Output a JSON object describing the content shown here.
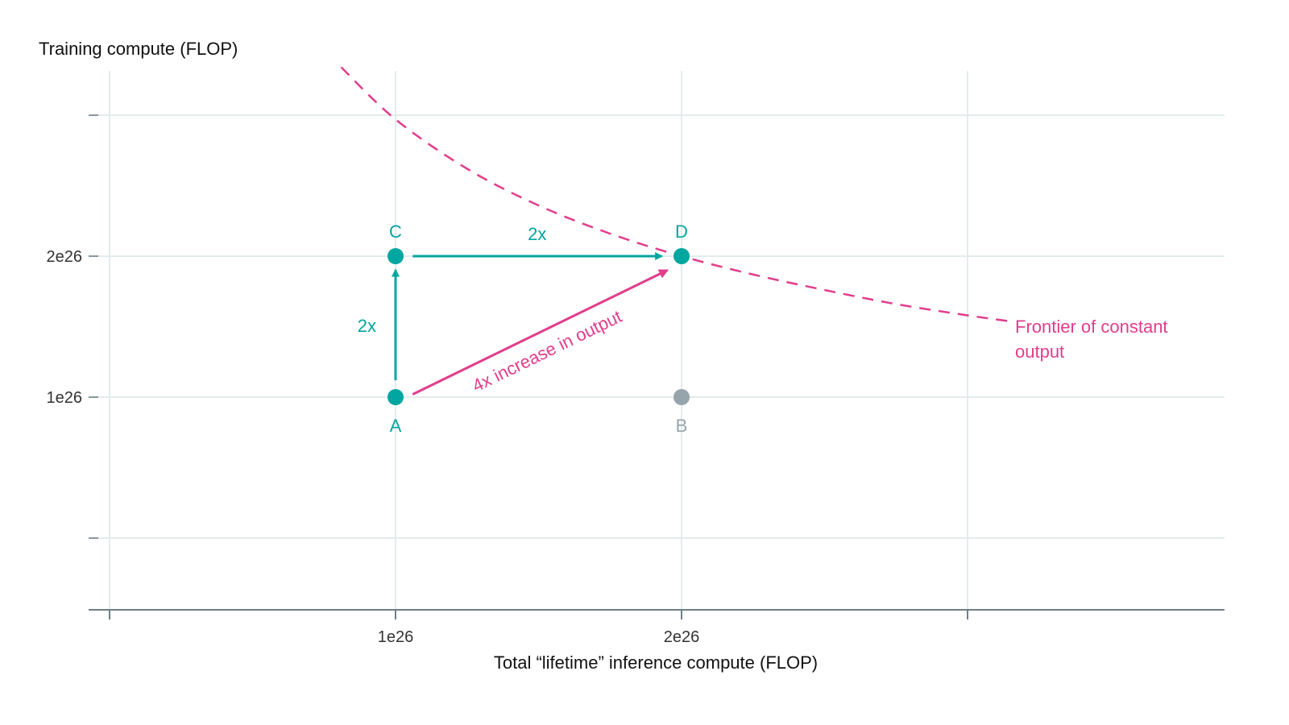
{
  "chart_data": {
    "type": "scatter",
    "title": "",
    "ylabel": "Training compute (FLOP)",
    "xlabel": "Total “lifetime” inference compute (FLOP)",
    "xlim": [
      0,
      3.9
    ],
    "ylim": [
      -0.5,
      3.3
    ],
    "units_multiplier": "1e26",
    "x_ticks": [
      {
        "value": 0,
        "label": ""
      },
      {
        "value": 1,
        "label": "1e26"
      },
      {
        "value": 2,
        "label": "2e26"
      },
      {
        "value": 3,
        "label": ""
      }
    ],
    "y_ticks": [
      {
        "value": 0,
        "label": ""
      },
      {
        "value": 1,
        "label": "1e26"
      },
      {
        "value": 2,
        "label": "2e26"
      },
      {
        "value": 3,
        "label": ""
      }
    ],
    "grid": true,
    "points": [
      {
        "label": "A",
        "x": 1,
        "y": 1,
        "color": "#00a6a0",
        "label_pos": "below"
      },
      {
        "label": "B",
        "x": 2,
        "y": 1,
        "color": "#95a5ab",
        "label_pos": "below"
      },
      {
        "label": "C",
        "x": 1,
        "y": 2,
        "color": "#00a6a0",
        "label_pos": "above"
      },
      {
        "label": "D",
        "x": 2,
        "y": 2,
        "color": "#00a6a0",
        "label_pos": "above"
      }
    ],
    "arrows": [
      {
        "from": [
          1,
          1.12
        ],
        "to": [
          1,
          1.9
        ],
        "color": "#00a6a0",
        "label": "2x"
      },
      {
        "from": [
          1.06,
          2
        ],
        "to": [
          1.93,
          2
        ],
        "color": "#00a6a0",
        "label": "2x"
      },
      {
        "from": [
          1.06,
          1.02
        ],
        "to": [
          1.95,
          1.9
        ],
        "color": "#e23d8c",
        "label": "4x increase in output"
      }
    ],
    "frontier": {
      "name": "Frontier of constant output",
      "name_lines": [
        "Frontier of constant",
        "output"
      ],
      "color": "#e23d8c",
      "style": "dashed",
      "points": [
        [
          0.81,
          3.34
        ],
        [
          1.0,
          2.97
        ],
        [
          1.25,
          2.62
        ],
        [
          1.5,
          2.36
        ],
        [
          1.75,
          2.16
        ],
        [
          2.0,
          2.0
        ],
        [
          2.25,
          1.87
        ],
        [
          2.5,
          1.76
        ],
        [
          2.75,
          1.66
        ],
        [
          3.0,
          1.58
        ],
        [
          3.14,
          1.54
        ]
      ]
    }
  }
}
